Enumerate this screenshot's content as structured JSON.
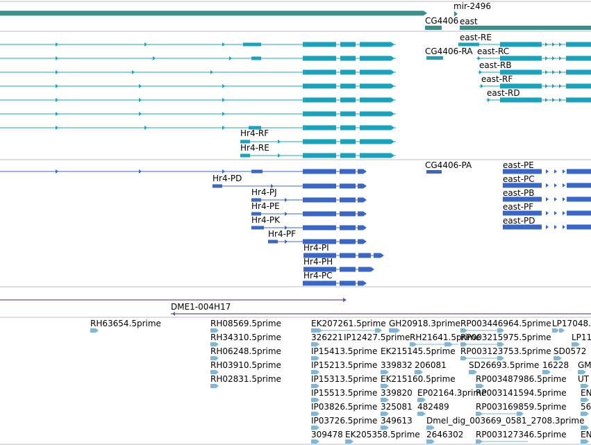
{
  "colors": {
    "gene": "#3a8f8c",
    "transcript": "#1aa3bf",
    "protein": "#3a66c7",
    "clone": "#6a4fa3",
    "est": "#7fb6dc",
    "divider": "#bdbdbd"
  },
  "tracks": {
    "gene": {
      "labels": {
        "mir": "mir-2496",
        "cg4406": "CG4406",
        "east": "east"
      }
    },
    "transcripts": {
      "labels": {
        "east_re": "east-RE",
        "cg4406_ra": "CG4406-RA",
        "east_rc": "east-RC",
        "east_rb": "east-RB",
        "east_rf": "east-RF",
        "east_rd": "east-RD",
        "hr4_rf": "Hr4-RF",
        "hr4_re": "Hr4-RE"
      }
    },
    "proteins": {
      "labels": {
        "cg4406_pa": "CG4406-PA",
        "east_pe": "east-PE",
        "hr4_pd": "Hr4-PD",
        "east_pc": "east-PC",
        "hr4_pj": "Hr4-PJ",
        "east_pb": "east-PB",
        "hr4_pe": "Hr4-PE",
        "east_pf": "east-PF",
        "hr4_pk": "Hr4-PK",
        "east_pd": "east-PD",
        "hr4_pf": "Hr4-PF",
        "hr4_pi": "Hr4-PI",
        "hr4_ph": "Hr4-PH",
        "hr4_pc": "Hr4-PC"
      }
    },
    "clones": {
      "labels": {
        "dme1": "DME1-004H17"
      }
    },
    "ests": {
      "labels": [
        "RH63654.5prime",
        "RH08569.5prime",
        "RH34310.5prime",
        "RH06248.5prime",
        "RH03910.5prime",
        "RH02831.5prime",
        "EK207261.5prime",
        "GH20918.3prime",
        "RP003446964.5prime",
        "LP17048.",
        "326221",
        "IP12427.5prime",
        "RH21641.5prime",
        "RP003215975.5prime",
        "LP11",
        "IP15413.5prime",
        "EK215145.5prime",
        "RP003123753.5prime",
        "SD0572",
        "IP15213.5prime",
        "339832",
        "206081",
        "SD26693.5prime",
        "16228",
        "GM",
        "IP15313.5prime",
        "EK215160.5prime",
        "RP003487986.5prime",
        "UT",
        "IP15513.5prime",
        "339820",
        "EP02164.3prime",
        "RP003141594.5prime",
        "EN",
        "IP03826.5prime",
        "325081",
        "482489",
        "RP003169859.5prime",
        "56",
        "IP03726.5prime",
        "349613",
        "Dmel_dig_003669_0581_2708.3prime",
        "309478",
        "EK205358.5prime",
        "2646302",
        "RP003127346.5prime",
        "EN"
      ]
    }
  }
}
